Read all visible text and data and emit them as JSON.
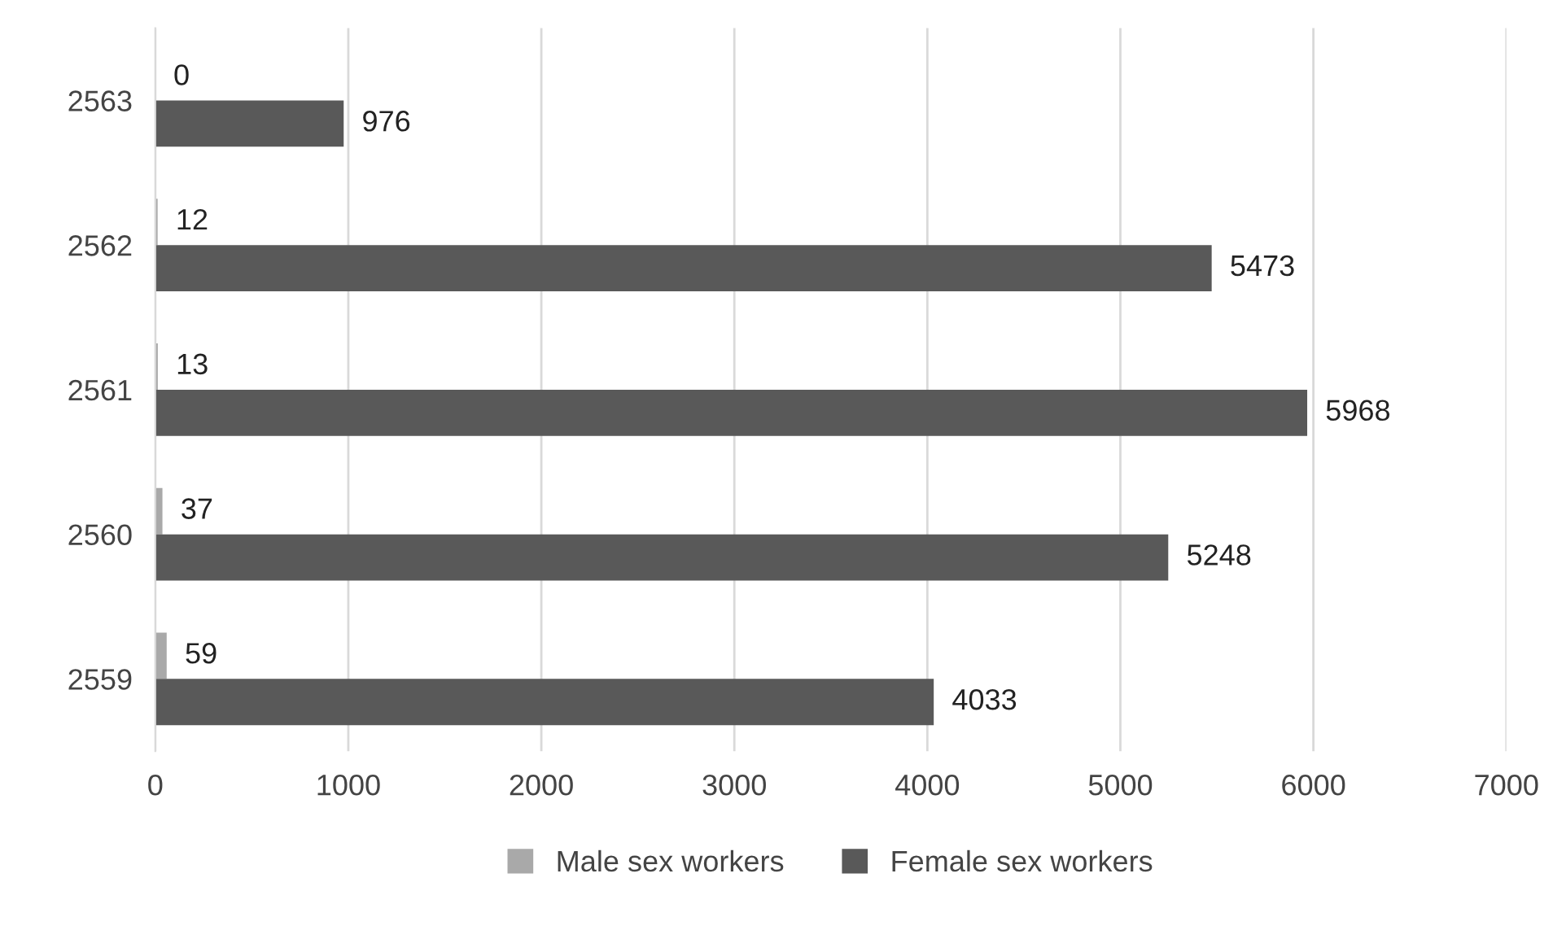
{
  "chart_data": {
    "type": "bar",
    "orientation": "horizontal",
    "categories": [
      "2563",
      "2562",
      "2561",
      "2560",
      "2559"
    ],
    "series": [
      {
        "name": "Male sex workers",
        "color": "#a9a9a9",
        "values": [
          0,
          12,
          13,
          37,
          59
        ]
      },
      {
        "name": "Female sex workers",
        "color": "#595959",
        "values": [
          976,
          5473,
          5968,
          5248,
          4033
        ]
      }
    ],
    "xlim": [
      0,
      7000
    ],
    "xticks": [
      0,
      1000,
      2000,
      3000,
      4000,
      5000,
      6000,
      7000
    ],
    "grid": "x",
    "legend": "bottom",
    "data_labels": true
  }
}
